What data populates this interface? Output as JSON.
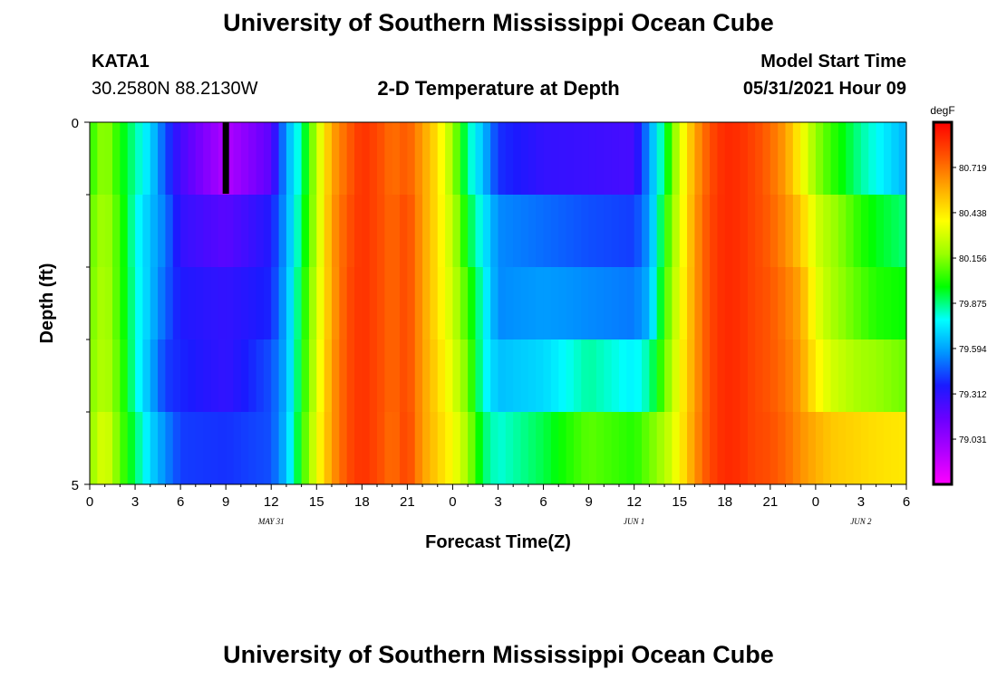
{
  "header": {
    "title": "University of Southern Mississippi Ocean Cube",
    "station_id": "KATA1",
    "station_coords": "30.2580N  88.2130W",
    "subtitle": "2-D Temperature at Depth",
    "model_start_label": "Model Start Time",
    "model_start_value": "05/31/2021 Hour 09"
  },
  "footer": {
    "title": "University of Southern Mississippi Ocean Cube"
  },
  "colors": {
    "scale_stops": [
      "#ff00ff",
      "#b000ff",
      "#6a00ff",
      "#1a1aff",
      "#0096ff",
      "#00ffff",
      "#00ff00",
      "#9aff00",
      "#ffff00",
      "#ffaa00",
      "#ff5000",
      "#ff0000"
    ],
    "marker": "#000000"
  },
  "chart_data": {
    "type": "heatmap",
    "title": "2-D Temperature at Depth",
    "xlabel": "Forecast Time(Z)",
    "ylabel": "Depth (ft)",
    "x_ticks": [
      "0",
      "3",
      "6",
      "9",
      "12",
      "15",
      "18",
      "21",
      "0",
      "3",
      "6",
      "9",
      "12",
      "15",
      "18",
      "21",
      "0",
      "3",
      "6"
    ],
    "date_labels": [
      {
        "label": "MAY 31",
        "at_tick": 12
      },
      {
        "label": "JUN 1",
        "at_tick": 36
      },
      {
        "label": "JUN 2",
        "at_tick": 51
      }
    ],
    "x_range_hours": [
      0,
      54
    ],
    "y_ticks": [
      "0",
      "5"
    ],
    "y_range_ft": [
      0,
      5
    ],
    "current_time_marker_hour": 9,
    "colorbar": {
      "unit": "degF",
      "labels": [
        "79.031",
        "79.312",
        "79.594",
        "79.875",
        "80.156",
        "80.438",
        "80.719"
      ],
      "range": [
        78.75,
        81.0
      ]
    },
    "depth_layers_ft": [
      0,
      1,
      2,
      3,
      4,
      5
    ],
    "profile_hours": [
      0,
      1,
      2,
      3,
      4,
      5,
      6,
      9,
      12,
      13,
      14,
      15,
      16,
      17,
      18,
      19,
      20,
      21,
      22,
      23,
      24,
      25,
      26,
      27,
      30,
      33,
      36,
      37,
      38,
      39,
      40,
      41,
      42,
      43,
      44,
      45,
      46,
      47,
      48,
      49,
      50,
      51,
      52,
      53,
      54
    ],
    "temperature_degF": [
      [
        80.02,
        80.1,
        80.12,
        80.14,
        80.16
      ],
      [
        80.2,
        80.22,
        80.24,
        80.25,
        80.34
      ],
      [
        80.0,
        80.05,
        80.05,
        80.08,
        80.1
      ],
      [
        79.85,
        79.8,
        79.82,
        79.82,
        79.9
      ],
      [
        79.7,
        79.65,
        79.65,
        79.62,
        79.7
      ],
      [
        79.45,
        79.52,
        79.48,
        79.42,
        79.55
      ],
      [
        79.25,
        79.3,
        79.35,
        79.38,
        79.42
      ],
      [
        78.95,
        79.2,
        79.3,
        79.3,
        79.4
      ],
      [
        79.2,
        79.35,
        79.38,
        79.45,
        79.45
      ],
      [
        79.6,
        79.6,
        79.62,
        79.62,
        79.65
      ],
      [
        79.85,
        79.9,
        79.95,
        79.98,
        80.02
      ],
      [
        80.25,
        80.25,
        80.28,
        80.3,
        80.35
      ],
      [
        80.6,
        80.62,
        80.6,
        80.62,
        80.62
      ],
      [
        80.75,
        80.78,
        80.8,
        80.8,
        80.8
      ],
      [
        80.88,
        80.88,
        80.88,
        80.88,
        80.88
      ],
      [
        80.82,
        80.82,
        80.82,
        80.82,
        80.82
      ],
      [
        80.72,
        80.74,
        80.74,
        80.74,
        80.72
      ],
      [
        80.78,
        80.82,
        80.82,
        80.82,
        80.84
      ],
      [
        80.62,
        80.62,
        80.62,
        80.62,
        80.62
      ],
      [
        80.45,
        80.45,
        80.45,
        80.48,
        80.5
      ],
      [
        80.2,
        80.25,
        80.28,
        80.32,
        80.38
      ],
      [
        79.85,
        79.95,
        80.05,
        80.12,
        80.2
      ],
      [
        79.65,
        79.75,
        79.8,
        79.8,
        79.9
      ],
      [
        79.4,
        79.55,
        79.55,
        79.65,
        79.8
      ],
      [
        79.3,
        79.5,
        79.58,
        79.7,
        79.92
      ],
      [
        79.28,
        79.45,
        79.55,
        79.85,
        80.1
      ],
      [
        79.25,
        79.42,
        79.52,
        79.75,
        80.02
      ],
      [
        79.58,
        79.58,
        79.62,
        79.85,
        80.12
      ],
      [
        79.9,
        80.0,
        80.05,
        80.1,
        80.22
      ],
      [
        80.3,
        80.32,
        80.35,
        80.38,
        80.4
      ],
      [
        80.6,
        80.62,
        80.62,
        80.62,
        80.64
      ],
      [
        80.8,
        80.82,
        80.82,
        80.82,
        80.82
      ],
      [
        80.9,
        80.9,
        80.9,
        80.9,
        80.9
      ],
      [
        80.88,
        80.88,
        80.88,
        80.88,
        80.88
      ],
      [
        80.82,
        80.82,
        80.82,
        80.82,
        80.82
      ],
      [
        80.74,
        80.76,
        80.78,
        80.78,
        80.8
      ],
      [
        80.62,
        80.66,
        80.7,
        80.72,
        80.74
      ],
      [
        80.4,
        80.52,
        80.6,
        80.62,
        80.65
      ],
      [
        80.18,
        80.3,
        80.35,
        80.42,
        80.58
      ],
      [
        80.05,
        80.2,
        80.22,
        80.3,
        80.52
      ],
      [
        79.95,
        80.12,
        80.15,
        80.25,
        80.5
      ],
      [
        79.85,
        80.02,
        80.08,
        80.2,
        80.48
      ],
      [
        79.78,
        79.96,
        80.02,
        80.18,
        80.46
      ],
      [
        79.7,
        79.92,
        80.0,
        80.15,
        80.45
      ],
      [
        79.62,
        79.88,
        79.98,
        80.12,
        80.44
      ]
    ]
  }
}
